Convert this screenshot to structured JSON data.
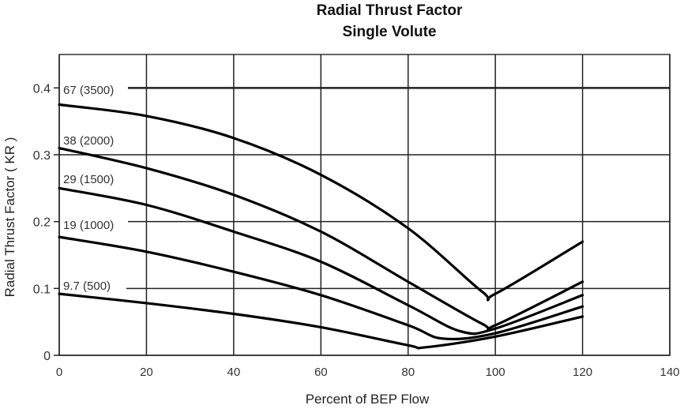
{
  "chart_data": {
    "type": "line",
    "title": "Radial Thrust Factor",
    "subtitle": "Single Volute",
    "xlabel": "Percent of BEP Flow",
    "ylabel": "Radial Thrust Factor ( KR )",
    "xlim": [
      0,
      140
    ],
    "ylim": [
      0,
      0.45
    ],
    "xticks": [
      0,
      20,
      40,
      60,
      80,
      100,
      120,
      140
    ],
    "yticks": [
      0,
      0.1,
      0.2,
      0.3,
      0.4
    ],
    "xtick_labels": [
      "0",
      "20",
      "40",
      "60",
      "80",
      "100",
      "120",
      "140"
    ],
    "ytick_labels": [
      "0",
      "0.1",
      "0.2",
      "0.3",
      "0.4"
    ],
    "grid": true,
    "series": [
      {
        "name": "67 (3500)",
        "x": [
          0,
          20,
          40,
          60,
          80,
          97,
          100,
          120
        ],
        "values": [
          0.375,
          0.358,
          0.325,
          0.27,
          0.19,
          0.095,
          0.092,
          0.17
        ]
      },
      {
        "name": "38 (2000)",
        "x": [
          0,
          20,
          40,
          60,
          80,
          97,
          100,
          120
        ],
        "values": [
          0.31,
          0.28,
          0.24,
          0.185,
          0.11,
          0.047,
          0.045,
          0.11
        ]
      },
      {
        "name": "29 (1500)",
        "x": [
          0,
          20,
          40,
          60,
          80,
          92,
          100,
          120
        ],
        "values": [
          0.25,
          0.225,
          0.185,
          0.14,
          0.075,
          0.036,
          0.04,
          0.09
        ]
      },
      {
        "name": "19 (1000)",
        "x": [
          0,
          20,
          40,
          60,
          80,
          88,
          100,
          120
        ],
        "values": [
          0.177,
          0.155,
          0.125,
          0.09,
          0.045,
          0.025,
          0.033,
          0.073
        ]
      },
      {
        "name": "9.7 (500)",
        "x": [
          0,
          20,
          40,
          60,
          80,
          84,
          100,
          120
        ],
        "values": [
          0.092,
          0.078,
          0.062,
          0.042,
          0.015,
          0.012,
          0.028,
          0.058
        ]
      }
    ],
    "annotations": [
      "67 (3500)",
      "38 (2000)",
      "29 (1500)",
      "19 (1000)",
      "9.7 (500)"
    ]
  }
}
